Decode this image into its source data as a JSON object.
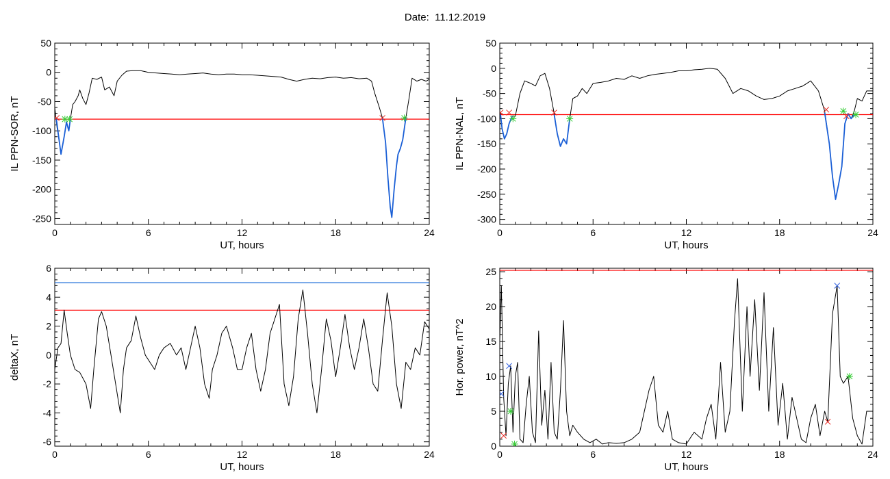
{
  "header": {
    "date_label": "Date:",
    "date_value": "11.12.2019"
  },
  "colors": {
    "data_line": "#000000",
    "threshold_red": "#ff0000",
    "threshold_blue": "#1e6fd9",
    "highlight_blue": "#1a5fd6",
    "marker_red": "#e8201a",
    "marker_green": "#33cc33",
    "marker_blue": "#3060e0"
  },
  "chart_data": [
    {
      "id": "top-left",
      "type": "line",
      "xlabel": "UT, hours",
      "ylabel": "IL PPN-SOR, nT",
      "xlim": [
        0,
        24
      ],
      "ylim": [
        -260,
        50
      ],
      "xticks": [
        0,
        6,
        12,
        18,
        24
      ],
      "yticks": [
        50,
        0,
        -50,
        -100,
        -150,
        -200,
        -250
      ],
      "x": [
        0,
        0.15,
        0.3,
        0.4,
        0.6,
        0.75,
        0.9,
        1.0,
        1.15,
        1.3,
        1.5,
        1.6,
        1.8,
        2.0,
        2.2,
        2.4,
        2.7,
        3.0,
        3.2,
        3.5,
        3.8,
        4.0,
        4.3,
        4.6,
        5.0,
        5.5,
        6.0,
        6.5,
        7.0,
        7.5,
        8.0,
        8.5,
        9.0,
        9.5,
        10.0,
        10.5,
        11.0,
        11.5,
        12.0,
        12.5,
        13.0,
        13.5,
        14.0,
        14.5,
        15.0,
        15.5,
        16.0,
        16.5,
        17.0,
        17.5,
        18.0,
        18.5,
        19.0,
        19.5,
        20.0,
        20.3,
        20.5,
        20.8,
        21.0,
        21.2,
        21.35,
        21.5,
        21.6,
        21.75,
        21.9,
        22.0,
        22.15,
        22.3,
        22.5,
        22.7,
        22.9,
        23.2,
        23.5,
        23.8,
        24.0
      ],
      "values": [
        -60,
        -95,
        -120,
        -140,
        -110,
        -85,
        -100,
        -80,
        -55,
        -50,
        -40,
        -30,
        -45,
        -55,
        -35,
        -10,
        -12,
        -8,
        -30,
        -25,
        -40,
        -15,
        -5,
        2,
        3,
        3,
        0,
        -1,
        -2,
        -3,
        -4,
        -3,
        -2,
        -1,
        -3,
        -4,
        -3,
        -3,
        -4,
        -4,
        -5,
        -6,
        -7,
        -8,
        -12,
        -15,
        -12,
        -10,
        -11,
        -9,
        -8,
        -10,
        -9,
        -11,
        -10,
        -15,
        -35,
        -60,
        -78,
        -120,
        -180,
        -230,
        -248,
        -200,
        -160,
        -140,
        -130,
        -115,
        -78,
        -45,
        -10,
        -15,
        -12,
        -15,
        -12
      ],
      "highlight": [
        {
          "x": [
            0.1,
            0.3,
            0.4,
            0.6,
            0.75,
            0.9,
            1.0
          ],
          "values": [
            -80,
            -120,
            -140,
            -110,
            -85,
            -100,
            -80
          ]
        },
        {
          "x": [
            21.0,
            21.2,
            21.35,
            21.5,
            21.6,
            21.75,
            21.9,
            22.0,
            22.15,
            22.3,
            22.5
          ],
          "values": [
            -78,
            -120,
            -180,
            -230,
            -248,
            -200,
            -160,
            -140,
            -130,
            -115,
            -78
          ]
        }
      ],
      "thresholds": [
        {
          "value": -80,
          "color": "red"
        }
      ],
      "markers": [
        {
          "x": 0.12,
          "y": -78,
          "color": "red"
        },
        {
          "x": 0.65,
          "y": -80,
          "color": "green"
        },
        {
          "x": 0.95,
          "y": -80,
          "color": "green"
        },
        {
          "x": 21.0,
          "y": -78,
          "color": "red"
        },
        {
          "x": 22.4,
          "y": -78,
          "color": "green"
        }
      ]
    },
    {
      "id": "top-right",
      "type": "line",
      "xlabel": "UT, hours",
      "ylabel": "IL PPN-NAL, nT",
      "xlim": [
        0,
        24
      ],
      "ylim": [
        -310,
        50
      ],
      "xticks": [
        0,
        6,
        12,
        18,
        24
      ],
      "yticks": [
        50,
        0,
        -50,
        -100,
        -150,
        -200,
        -250,
        -300
      ],
      "x": [
        0,
        0.15,
        0.3,
        0.45,
        0.6,
        0.8,
        1.0,
        1.3,
        1.6,
        2.0,
        2.3,
        2.6,
        2.9,
        3.2,
        3.5,
        3.7,
        3.9,
        4.1,
        4.3,
        4.5,
        4.7,
        5.0,
        5.3,
        5.6,
        6.0,
        6.5,
        7.0,
        7.5,
        8.0,
        8.5,
        9.0,
        9.5,
        10.0,
        10.5,
        11.0,
        11.5,
        12.0,
        12.5,
        13.0,
        13.5,
        14.0,
        14.5,
        15.0,
        15.5,
        16.0,
        16.5,
        17.0,
        17.5,
        18.0,
        18.5,
        19.0,
        19.5,
        20.0,
        20.5,
        20.9,
        21.2,
        21.4,
        21.6,
        21.8,
        22.0,
        22.2,
        22.4,
        22.6,
        22.8,
        23.0,
        23.3,
        23.6,
        24.0
      ],
      "values": [
        -85,
        -120,
        -140,
        -130,
        -110,
        -95,
        -95,
        -50,
        -25,
        -30,
        -35,
        -15,
        -10,
        -40,
        -90,
        -130,
        -155,
        -140,
        -150,
        -100,
        -60,
        -55,
        -40,
        -50,
        -30,
        -28,
        -25,
        -20,
        -22,
        -15,
        -20,
        -15,
        -12,
        -10,
        -8,
        -5,
        -5,
        -3,
        -2,
        0,
        -2,
        -20,
        -50,
        -40,
        -45,
        -55,
        -62,
        -60,
        -55,
        -45,
        -40,
        -35,
        -25,
        -45,
        -85,
        -150,
        -215,
        -260,
        -230,
        -195,
        -110,
        -90,
        -100,
        -85,
        -60,
        -65,
        -45,
        -45
      ],
      "highlight": [
        {
          "x": [
            0.05,
            0.15,
            0.3,
            0.45,
            0.6,
            0.8
          ],
          "values": [
            -92,
            -120,
            -140,
            -130,
            -110,
            -95
          ]
        },
        {
          "x": [
            3.5,
            3.7,
            3.9,
            4.1,
            4.3,
            4.5
          ],
          "values": [
            -92,
            -130,
            -155,
            -140,
            -150,
            -100
          ]
        },
        {
          "x": [
            20.9,
            21.2,
            21.4,
            21.6,
            21.8,
            22.0,
            22.2,
            22.4,
            22.6,
            22.8
          ],
          "values": [
            -88,
            -150,
            -215,
            -260,
            -230,
            -195,
            -110,
            -90,
            -100,
            -92
          ]
        }
      ],
      "thresholds": [
        {
          "value": -92,
          "color": "red"
        }
      ],
      "markers": [
        {
          "x": 0.05,
          "y": -88,
          "color": "red"
        },
        {
          "x": 0.6,
          "y": -88,
          "color": "red"
        },
        {
          "x": 0.85,
          "y": -100,
          "color": "green"
        },
        {
          "x": 3.5,
          "y": -88,
          "color": "red"
        },
        {
          "x": 4.5,
          "y": -100,
          "color": "green"
        },
        {
          "x": 21.0,
          "y": -82,
          "color": "red"
        },
        {
          "x": 22.1,
          "y": -85,
          "color": "green"
        },
        {
          "x": 22.3,
          "y": -95,
          "color": "red"
        },
        {
          "x": 22.9,
          "y": -92,
          "color": "green"
        }
      ]
    },
    {
      "id": "bottom-left",
      "type": "line",
      "xlabel": "UT, hours",
      "ylabel": "deltaX, nT",
      "xlim": [
        0,
        24
      ],
      "ylim": [
        -6.3,
        6
      ],
      "xticks": [
        0,
        6,
        12,
        18,
        24
      ],
      "yticks": [
        6,
        4,
        2,
        0,
        -2,
        -4,
        -6
      ],
      "x": [
        0,
        0.2,
        0.4,
        0.6,
        0.8,
        1.0,
        1.3,
        1.6,
        2.0,
        2.3,
        2.5,
        2.8,
        3.0,
        3.3,
        3.6,
        3.9,
        4.2,
        4.4,
        4.6,
        4.9,
        5.2,
        5.5,
        5.8,
        6.1,
        6.4,
        6.7,
        7.0,
        7.4,
        7.8,
        8.1,
        8.4,
        8.7,
        9.0,
        9.3,
        9.6,
        9.9,
        10.1,
        10.4,
        10.7,
        11.0,
        11.4,
        11.7,
        12.0,
        12.3,
        12.6,
        12.9,
        13.2,
        13.5,
        13.8,
        14.1,
        14.4,
        14.7,
        15.0,
        15.3,
        15.6,
        15.9,
        16.2,
        16.5,
        16.8,
        17.1,
        17.4,
        17.7,
        18.0,
        18.3,
        18.6,
        18.9,
        19.2,
        19.5,
        19.8,
        20.1,
        20.4,
        20.7,
        21.0,
        21.3,
        21.6,
        21.9,
        22.2,
        22.5,
        22.8,
        23.1,
        23.4,
        23.7,
        24.0
      ],
      "values": [
        -1,
        0.5,
        0.8,
        3.1,
        1.5,
        0,
        -1,
        -1.2,
        -2,
        -3.7,
        -1,
        2.5,
        3,
        2,
        0,
        -2,
        -4,
        -1,
        0.5,
        1,
        2.7,
        1.2,
        0,
        -0.5,
        -1,
        0,
        0.5,
        0.8,
        0,
        0.5,
        -1,
        0.5,
        2,
        0.5,
        -2,
        -3,
        -1,
        0,
        1.5,
        2,
        0.5,
        -1,
        -1,
        0.5,
        1.5,
        -1,
        -2.5,
        -1,
        1.5,
        2.5,
        3.5,
        -2,
        -3.5,
        -1.5,
        2.5,
        4.5,
        1.5,
        -2,
        -4,
        -1,
        2.5,
        1,
        -1.5,
        0.5,
        2.8,
        0.5,
        -1,
        0.5,
        2.5,
        0.5,
        -2,
        -2.5,
        1,
        4.3,
        2,
        -2,
        -3.7,
        -0.5,
        -1,
        0.5,
        0,
        2.3,
        1.8
      ],
      "thresholds": [
        {
          "value": 5,
          "color": "blue"
        },
        {
          "value": 3.1,
          "color": "red"
        }
      ],
      "markers": []
    },
    {
      "id": "bottom-right",
      "type": "line",
      "xlabel": "UT, hours",
      "ylabel": "Hor. power, nT^2",
      "xlim": [
        0,
        24
      ],
      "ylim": [
        0,
        25.5
      ],
      "xticks": [
        0,
        6,
        12,
        18,
        24
      ],
      "yticks": [
        0,
        5,
        10,
        15,
        20,
        25
      ],
      "x": [
        0,
        0.1,
        0.25,
        0.4,
        0.55,
        0.7,
        0.85,
        1.0,
        1.15,
        1.3,
        1.5,
        1.7,
        1.9,
        2.1,
        2.3,
        2.5,
        2.7,
        2.9,
        3.1,
        3.3,
        3.5,
        3.7,
        3.9,
        4.1,
        4.3,
        4.5,
        4.7,
        5.0,
        5.4,
        5.8,
        6.2,
        6.6,
        7.0,
        7.5,
        8.0,
        8.5,
        9.0,
        9.3,
        9.6,
        9.9,
        10.2,
        10.5,
        10.8,
        11.1,
        11.5,
        12.0,
        12.5,
        13.0,
        13.3,
        13.6,
        13.9,
        14.2,
        14.5,
        14.8,
        15.1,
        15.3,
        15.6,
        15.9,
        16.1,
        16.4,
        16.7,
        17.0,
        17.3,
        17.6,
        17.9,
        18.2,
        18.5,
        18.8,
        19.1,
        19.4,
        19.7,
        20.0,
        20.3,
        20.6,
        20.9,
        21.1,
        21.4,
        21.7,
        21.9,
        22.1,
        22.4,
        22.7,
        23.0,
        23.3,
        23.6,
        24.0
      ],
      "values": [
        15,
        23,
        7,
        1.5,
        9,
        11.5,
        2,
        10,
        12,
        1,
        0.5,
        6,
        10,
        2,
        0.5,
        16.5,
        3,
        8,
        1,
        12,
        2,
        1,
        8,
        18,
        5,
        1.5,
        3,
        2,
        1,
        0.5,
        1,
        0.3,
        0.5,
        0.4,
        0.5,
        1,
        2,
        5,
        8,
        10,
        3,
        2,
        5,
        1,
        0.5,
        0.3,
        2,
        1,
        4,
        6,
        1,
        12,
        2,
        5,
        18,
        24,
        5,
        20,
        10,
        21,
        8,
        22,
        5,
        17,
        3,
        9,
        1,
        7,
        4,
        1,
        0.5,
        4,
        6,
        1.5,
        5,
        3.5,
        19,
        23,
        10,
        9,
        10,
        4,
        1.5,
        0.3,
        5,
        5
      ],
      "thresholds": [
        {
          "value": 25.2,
          "color": "red"
        }
      ],
      "markers": [
        {
          "x": 0.1,
          "y": 7.5,
          "color": "blue"
        },
        {
          "x": 0.6,
          "y": 11.5,
          "color": "blue"
        },
        {
          "x": 0.25,
          "y": 1.5,
          "color": "red"
        },
        {
          "x": 0.7,
          "y": 5,
          "color": "green"
        },
        {
          "x": 0.95,
          "y": 0.3,
          "color": "green"
        },
        {
          "x": 21.1,
          "y": 3.5,
          "color": "red"
        },
        {
          "x": 21.7,
          "y": 23,
          "color": "blue"
        },
        {
          "x": 22.5,
          "y": 10,
          "color": "green"
        }
      ]
    }
  ]
}
